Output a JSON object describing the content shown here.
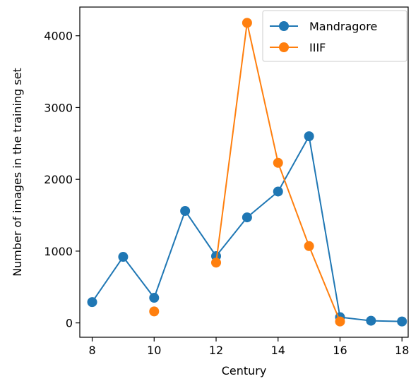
{
  "chart_data": {
    "type": "line",
    "xlabel": "Century",
    "ylabel": "Number of images in the training set",
    "xlim": [
      7.6,
      18.2
    ],
    "ylim": [
      -200,
      4400
    ],
    "xticks": [
      8,
      10,
      12,
      14,
      16,
      18
    ],
    "yticks": [
      0,
      1000,
      2000,
      3000,
      4000
    ],
    "grid": false,
    "legend_position": "top-right",
    "series": [
      {
        "name": "Mandragore",
        "color": "#1f77b4",
        "points": [
          {
            "x": 8,
            "y": 290
          },
          {
            "x": 9,
            "y": 920
          },
          {
            "x": 10,
            "y": 350
          },
          {
            "x": 11,
            "y": 1560
          },
          {
            "x": 12,
            "y": 930
          },
          {
            "x": 13,
            "y": 1470
          },
          {
            "x": 14,
            "y": 1830
          },
          {
            "x": 15,
            "y": 2600
          },
          {
            "x": 16,
            "y": 80
          },
          {
            "x": 17,
            "y": 30
          },
          {
            "x": 18,
            "y": 20
          }
        ]
      },
      {
        "name": "IIIF",
        "color": "#ff7f0e",
        "points": [
          {
            "x": 10,
            "y": 160
          },
          {
            "x": 12,
            "y": 840
          },
          {
            "x": 13,
            "y": 4180
          },
          {
            "x": 14,
            "y": 2230
          },
          {
            "x": 15,
            "y": 1070
          },
          {
            "x": 16,
            "y": 20
          }
        ],
        "segments": [
          [
            12,
            13,
            14,
            15,
            16
          ]
        ]
      }
    ]
  }
}
